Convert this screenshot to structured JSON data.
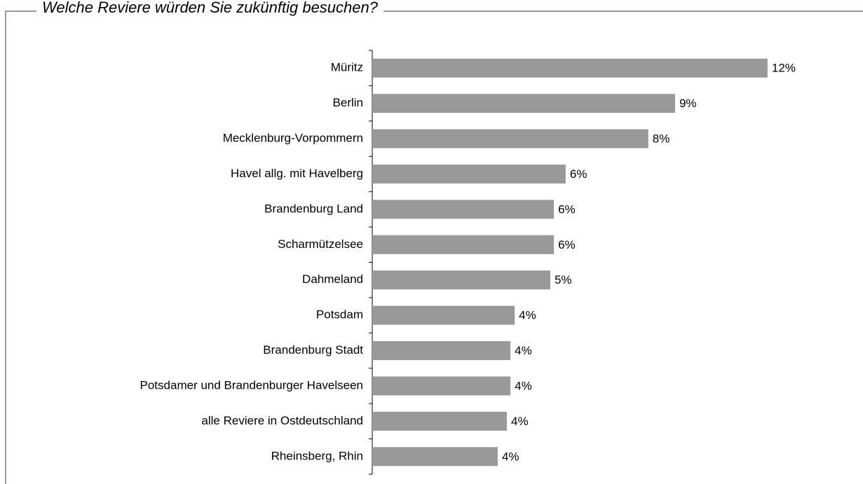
{
  "chart_data": {
    "type": "barh",
    "title": "Welche Reviere würden Sie zukünftig besuchen?",
    "categories": [
      "Müritz",
      "Berlin",
      "Mecklenburg-Vorpommern",
      "Havel allg. mit Havelberg",
      "Brandenburg Land",
      "Scharmützelsee",
      "Dahmeland",
      "Potsdam",
      "Brandenburg Stadt",
      "Potsdamer und Brandenburger Havelseen",
      "alle Reviere in Ostdeutschland",
      "Rheinsberg, Rhin"
    ],
    "values": [
      12.1,
      9.27,
      8.45,
      5.92,
      5.56,
      5.56,
      5.45,
      4.36,
      4.23,
      4.23,
      4.12,
      3.84
    ],
    "value_labels": [
      "12%",
      "9%",
      "8%",
      "6%",
      "6%",
      "6%",
      "5%",
      "4%",
      "4%",
      "4%",
      "4%",
      "4%"
    ],
    "color": "#999999",
    "xlim": [
      0,
      13
    ]
  }
}
